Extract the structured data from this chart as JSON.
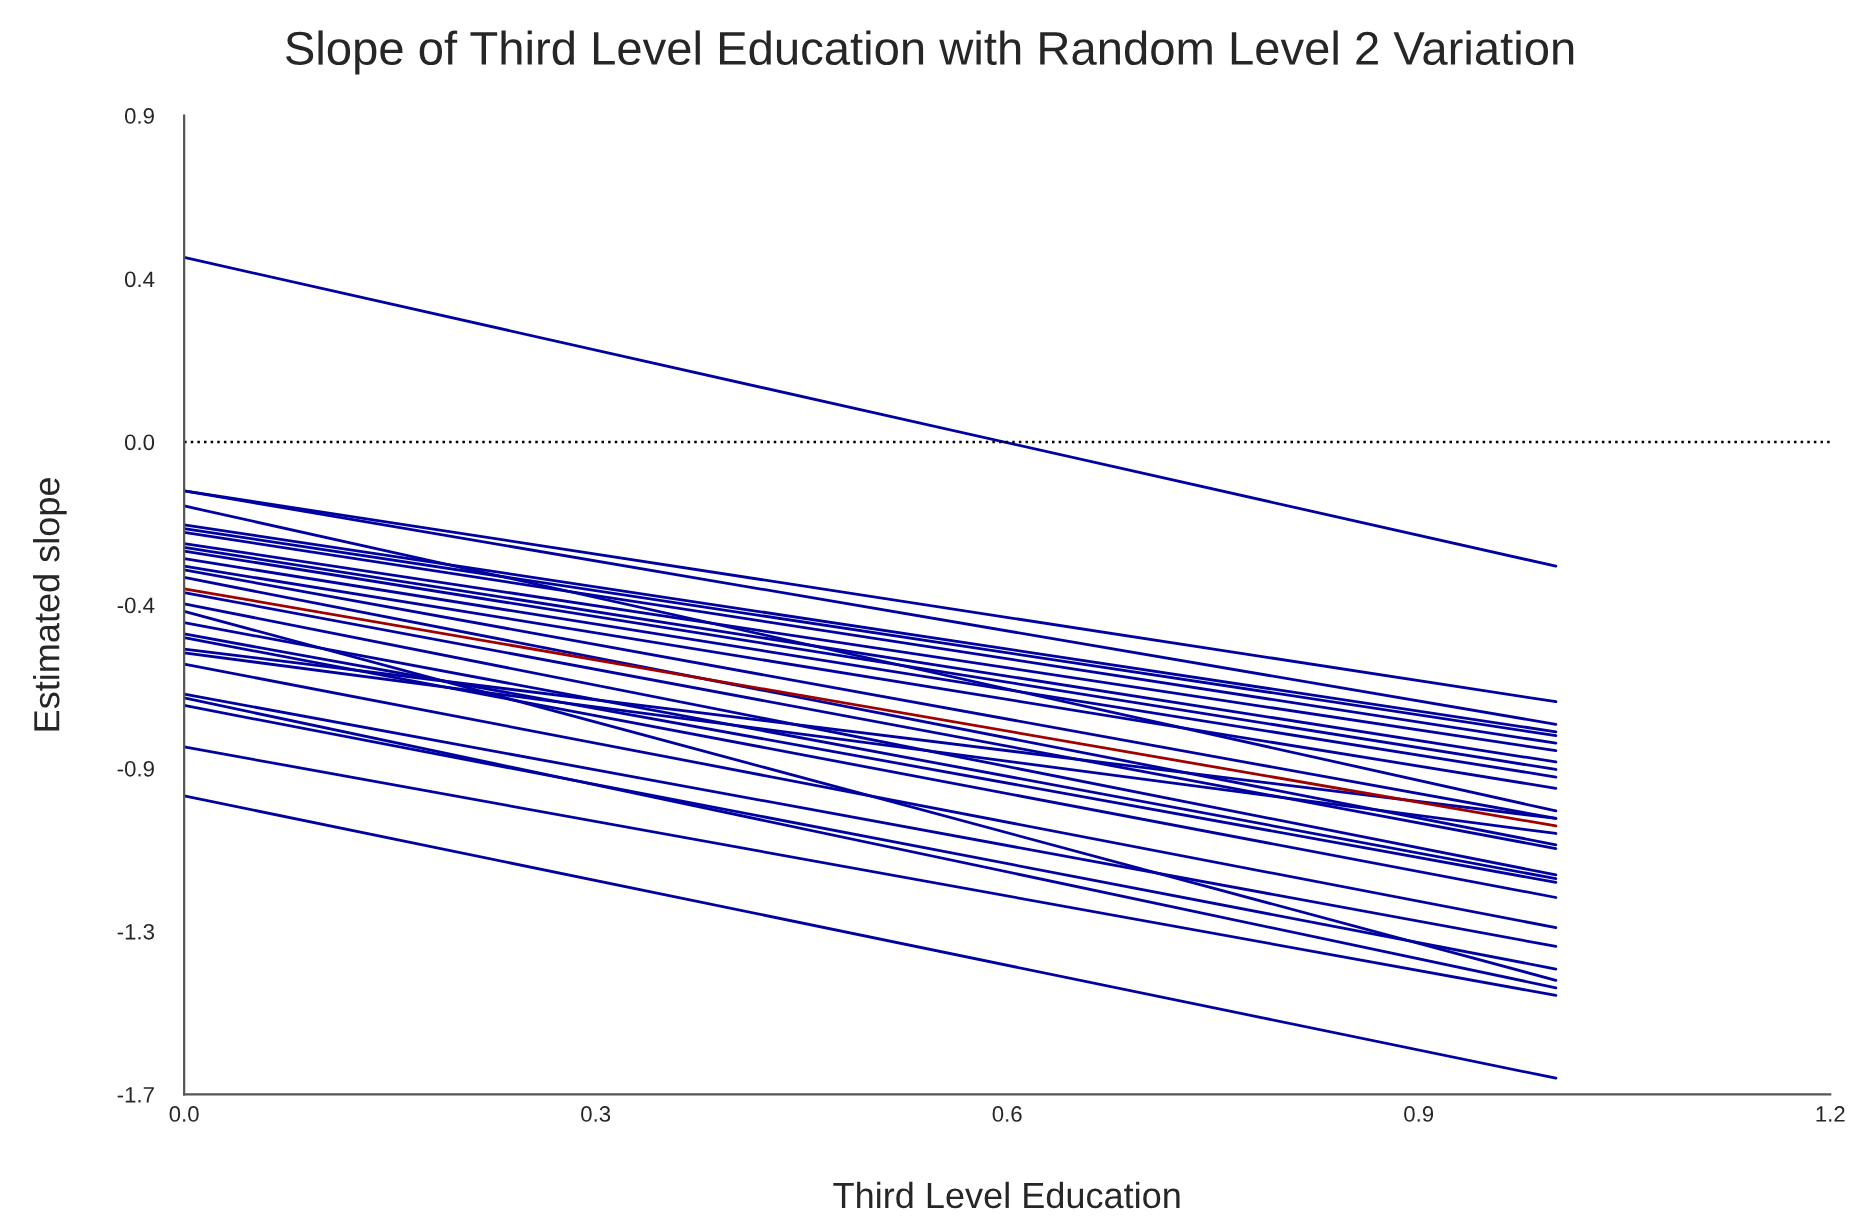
{
  "chart_data": {
    "type": "line",
    "title": "Slope of Third Level Education with Random Level 2 Variation",
    "xlabel": "Third Level Education",
    "ylabel": "Estimated slope",
    "xlim": [
      0,
      1.2
    ],
    "xticks": [
      {
        "value": 0,
        "label": "0.0"
      },
      {
        "value": 0.3,
        "label": "0.3"
      },
      {
        "value": 0.6,
        "label": "0.6"
      },
      {
        "value": 0.9,
        "label": "0.9"
      },
      {
        "value": 1.2,
        "label": "1.2"
      }
    ],
    "ylim": [
      -1.733,
      0.867
    ],
    "yticks": [
      {
        "value": 0.867,
        "label": "0.9"
      },
      {
        "value": 0.433,
        "label": "0.4"
      },
      {
        "value": 0,
        "label": "0.0"
      },
      {
        "value": -0.433,
        "label": "-0.4"
      },
      {
        "value": -0.867,
        "label": "-0.9"
      },
      {
        "value": -1.3,
        "label": "-1.3"
      },
      {
        "value": -1.733,
        "label": "-1.7"
      }
    ],
    "grid": false,
    "legend": false,
    "marker": "none",
    "line_style": "solid",
    "ref_lines": [
      {
        "axis": "y",
        "value": 0,
        "color": "#000000",
        "line_style": "dotted"
      }
    ],
    "x": [
      0,
      1
    ],
    "series": [
      {
        "color": "#0000a0",
        "values": [
          0.49,
          -0.33
        ]
      },
      {
        "color": "#0000a0",
        "values": [
          -0.13,
          -0.69
        ]
      },
      {
        "color": "#0000a0",
        "values": [
          -0.13,
          -0.75
        ]
      },
      {
        "color": "#0000a0",
        "values": [
          -0.17,
          -0.98
        ]
      },
      {
        "color": "#0000a0",
        "values": [
          -0.22,
          -0.77
        ]
      },
      {
        "color": "#0000a0",
        "values": [
          -0.23,
          -0.78
        ]
      },
      {
        "color": "#0000a0",
        "values": [
          -0.24,
          -0.8
        ]
      },
      {
        "color": "#0000a0",
        "values": [
          -0.27,
          -0.82
        ]
      },
      {
        "color": "#0000a0",
        "values": [
          -0.28,
          -0.85
        ]
      },
      {
        "color": "#0000a0",
        "values": [
          -0.29,
          -0.87
        ]
      },
      {
        "color": "#0000a0",
        "values": [
          -0.31,
          -0.89
        ]
      },
      {
        "color": "#0000a0",
        "values": [
          -0.33,
          -0.92
        ]
      },
      {
        "color": "#0000a0",
        "values": [
          -0.34,
          -1.0
        ]
      },
      {
        "color": "#0000a0",
        "values": [
          -0.36,
          -1.07
        ]
      },
      {
        "color": "#0000a0",
        "values": [
          -0.4,
          -1.08
        ]
      },
      {
        "color": "#0000a0",
        "values": [
          -0.43,
          -1.15
        ]
      },
      {
        "color": "#0000a0",
        "values": [
          -0.45,
          -1.43
        ]
      },
      {
        "color": "#0000a0",
        "values": [
          -0.48,
          -1.16
        ]
      },
      {
        "color": "#0000a0",
        "values": [
          -0.51,
          -1.17
        ]
      },
      {
        "color": "#0000a0",
        "values": [
          -0.52,
          -1.21
        ]
      },
      {
        "color": "#0000a0",
        "values": [
          -0.55,
          -1.0
        ]
      },
      {
        "color": "#0000a0",
        "values": [
          -0.56,
          -1.04
        ]
      },
      {
        "color": "#0000a0",
        "values": [
          -0.59,
          -1.29
        ]
      },
      {
        "color": "#0000a0",
        "values": [
          -0.67,
          -1.34
        ]
      },
      {
        "color": "#0000a0",
        "values": [
          -0.68,
          -1.45
        ]
      },
      {
        "color": "#0000a0",
        "values": [
          -0.7,
          -1.4
        ]
      },
      {
        "color": "#0000a0",
        "values": [
          -0.81,
          -1.47
        ]
      },
      {
        "color": "#0000a0",
        "values": [
          -0.94,
          -1.69
        ]
      },
      {
        "color": "#a00000",
        "values": [
          -0.39,
          -1.02
        ]
      }
    ]
  }
}
